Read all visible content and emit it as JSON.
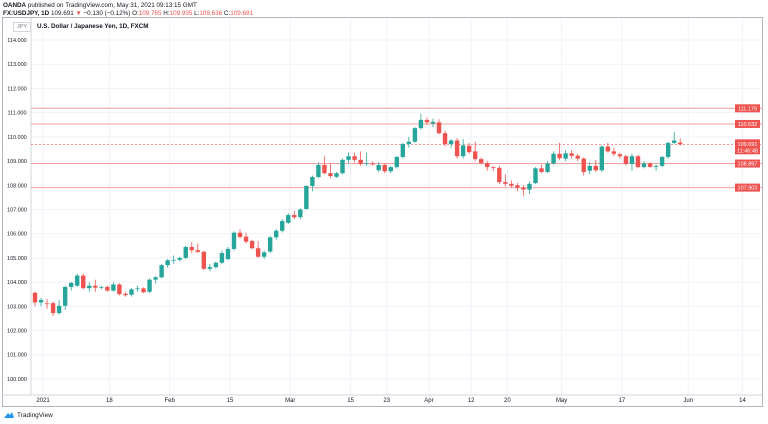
{
  "header": {
    "publisher": "OANDA",
    "published_text": "published on TradingView.com, May 31, 2021 09:13:15 GMT",
    "symbol": "FX:USDJPY, 1D",
    "last": "109.691",
    "change": "−0.130 (−0.12%)",
    "open_label": "O:",
    "open": "109.765",
    "high_label": "H:",
    "high": "109.935",
    "low_label": "L:",
    "low": "109.636",
    "close_label": "C:",
    "close": "109.691"
  },
  "currency_badge": "JPY",
  "footer": {
    "brand": "TradingView"
  },
  "colors": {
    "up": "#26a69a",
    "down": "#ef5350",
    "level": "#f4a09d"
  },
  "chart_data": {
    "type": "candlestick",
    "title": "U.S. Dollar / Japanese Yen, 1D, FXCM",
    "ylim": [
      99.3,
      115.0
    ],
    "y_ticks": [
      "114.000",
      "113.000",
      "112.000",
      "111.000",
      "110.000",
      "109.000",
      "108.000",
      "107.000",
      "106.000",
      "105.000",
      "104.000",
      "103.000",
      "102.000",
      "101.000",
      "100.000"
    ],
    "x_ticks": [
      {
        "label": "2021",
        "index": 1
      },
      {
        "label": "18",
        "index": 12
      },
      {
        "label": "Feb",
        "index": 22
      },
      {
        "label": "15",
        "index": 32
      },
      {
        "label": "Mar",
        "index": 42
      },
      {
        "label": "15",
        "index": 52
      },
      {
        "label": "23",
        "index": 58
      },
      {
        "label": "Apr",
        "index": 65
      },
      {
        "label": "12",
        "index": 72
      },
      {
        "label": "20",
        "index": 78
      },
      {
        "label": "May",
        "index": 87
      },
      {
        "label": "17",
        "index": 97
      },
      {
        "label": "Jun",
        "index": 108
      },
      {
        "label": "14",
        "index": 117
      }
    ],
    "levels": [
      {
        "label": "111.179",
        "value": 111.179
      },
      {
        "label": "110.532",
        "value": 110.532
      },
      {
        "label": "108.897",
        "value": 108.897
      },
      {
        "label": "107.903",
        "value": 107.903
      }
    ],
    "current_price": {
      "label": "109.691",
      "value": 109.691,
      "countdown": "11:46:48"
    },
    "ohlc": [
      [
        103.56,
        103.6,
        103.0,
        103.16
      ],
      [
        103.16,
        103.35,
        103.0,
        103.26
      ],
      [
        103.12,
        103.3,
        102.9,
        103.1
      ],
      [
        103.13,
        103.2,
        102.6,
        102.72
      ],
      [
        102.72,
        103.25,
        102.65,
        103.02
      ],
      [
        103.02,
        103.85,
        102.85,
        103.8
      ],
      [
        103.8,
        104.0,
        103.65,
        103.97
      ],
      [
        103.85,
        104.35,
        103.8,
        104.27
      ],
      [
        104.27,
        104.35,
        103.7,
        103.75
      ],
      [
        103.75,
        104.0,
        103.6,
        103.85
      ],
      [
        103.85,
        104.1,
        103.6,
        103.77
      ],
      [
        103.78,
        103.85,
        103.7,
        103.8
      ],
      [
        103.8,
        103.85,
        103.6,
        103.65
      ],
      [
        103.65,
        104.0,
        103.6,
        103.9
      ],
      [
        103.9,
        103.95,
        103.45,
        103.5
      ],
      [
        103.52,
        103.6,
        103.4,
        103.46
      ],
      [
        103.48,
        103.75,
        103.4,
        103.7
      ],
      [
        103.72,
        103.85,
        103.6,
        103.74
      ],
      [
        103.74,
        103.78,
        103.55,
        103.58
      ],
      [
        103.6,
        104.15,
        103.55,
        104.1
      ],
      [
        104.1,
        104.25,
        103.95,
        104.2
      ],
      [
        104.2,
        104.75,
        104.15,
        104.7
      ],
      [
        104.7,
        104.95,
        104.6,
        104.9
      ],
      [
        104.9,
        105.1,
        104.75,
        104.92
      ],
      [
        104.92,
        105.05,
        104.85,
        105.0
      ],
      [
        105.0,
        105.5,
        104.95,
        105.45
      ],
      [
        105.45,
        105.65,
        105.2,
        105.32
      ],
      [
        105.32,
        105.6,
        105.2,
        105.25
      ],
      [
        105.25,
        105.3,
        104.5,
        104.55
      ],
      [
        104.55,
        104.75,
        104.45,
        104.62
      ],
      [
        104.62,
        104.85,
        104.55,
        104.8
      ],
      [
        104.8,
        105.3,
        104.75,
        105.2
      ],
      [
        104.95,
        105.45,
        104.9,
        105.37
      ],
      [
        105.37,
        106.1,
        105.3,
        106.04
      ],
      [
        106.04,
        106.2,
        105.8,
        105.86
      ],
      [
        105.88,
        106.05,
        105.6,
        105.67
      ],
      [
        105.7,
        105.75,
        105.35,
        105.4
      ],
      [
        105.4,
        105.7,
        105.0,
        105.05
      ],
      [
        105.05,
        105.3,
        104.95,
        105.23
      ],
      [
        105.26,
        105.9,
        105.2,
        105.85
      ],
      [
        105.85,
        106.2,
        105.75,
        106.12
      ],
      [
        106.12,
        106.6,
        106.05,
        106.52
      ],
      [
        106.45,
        106.85,
        106.4,
        106.77
      ],
      [
        106.77,
        106.95,
        106.6,
        106.68
      ],
      [
        106.68,
        107.05,
        106.6,
        107.0
      ],
      [
        107.02,
        108.0,
        107.0,
        107.97
      ],
      [
        107.97,
        108.4,
        107.75,
        108.34
      ],
      [
        108.34,
        108.95,
        108.3,
        108.84
      ],
      [
        108.84,
        109.2,
        108.45,
        108.5
      ],
      [
        108.5,
        108.9,
        108.3,
        108.38
      ],
      [
        108.35,
        108.55,
        108.3,
        108.5
      ],
      [
        108.5,
        109.1,
        108.45,
        109.05
      ],
      [
        109.05,
        109.35,
        108.9,
        109.2
      ],
      [
        109.2,
        109.35,
        108.95,
        109.05
      ],
      [
        109.05,
        109.4,
        108.8,
        108.88
      ],
      [
        108.9,
        109.35,
        108.8,
        108.92
      ],
      [
        108.9,
        108.98,
        108.82,
        108.86
      ],
      [
        108.62,
        108.95,
        108.55,
        108.84
      ],
      [
        108.84,
        108.9,
        108.5,
        108.58
      ],
      [
        108.58,
        108.8,
        108.5,
        108.75
      ],
      [
        108.75,
        109.2,
        108.7,
        109.17
      ],
      [
        109.17,
        109.75,
        109.1,
        109.7
      ],
      [
        109.7,
        110.0,
        109.55,
        109.8
      ],
      [
        109.8,
        110.4,
        109.75,
        110.36
      ],
      [
        110.36,
        110.95,
        110.3,
        110.7
      ],
      [
        110.7,
        110.8,
        110.5,
        110.6
      ],
      [
        110.55,
        110.75,
        110.4,
        110.62
      ],
      [
        110.6,
        110.72,
        110.1,
        110.15
      ],
      [
        110.15,
        110.25,
        109.6,
        109.7
      ],
      [
        109.7,
        109.9,
        109.55,
        109.85
      ],
      [
        109.85,
        109.95,
        109.1,
        109.2
      ],
      [
        109.2,
        109.9,
        109.1,
        109.65
      ],
      [
        109.63,
        109.75,
        109.3,
        109.37
      ],
      [
        109.4,
        109.8,
        109.0,
        109.08
      ],
      [
        109.08,
        109.15,
        108.85,
        108.92
      ],
      [
        108.92,
        109.0,
        108.6,
        108.75
      ],
      [
        108.75,
        108.78,
        108.6,
        108.72
      ],
      [
        108.72,
        108.8,
        108.05,
        108.13
      ],
      [
        108.13,
        108.45,
        107.95,
        108.06
      ],
      [
        108.06,
        108.2,
        107.9,
        107.98
      ],
      [
        108.0,
        108.1,
        107.75,
        107.9
      ],
      [
        107.9,
        108.0,
        107.55,
        107.82
      ],
      [
        107.82,
        108.15,
        107.65,
        108.06
      ],
      [
        108.09,
        108.75,
        108.05,
        108.7
      ],
      [
        108.7,
        108.85,
        108.5,
        108.55
      ],
      [
        108.55,
        109.0,
        108.5,
        108.9
      ],
      [
        108.9,
        109.4,
        108.85,
        109.3
      ],
      [
        109.3,
        109.75,
        109.05,
        109.12
      ],
      [
        109.1,
        109.45,
        109.0,
        109.32
      ],
      [
        109.32,
        109.45,
        109.1,
        109.22
      ],
      [
        109.22,
        109.3,
        109.0,
        109.1
      ],
      [
        109.1,
        109.15,
        108.4,
        108.55
      ],
      [
        108.6,
        108.95,
        108.45,
        108.8
      ],
      [
        108.8,
        109.05,
        108.55,
        108.62
      ],
      [
        108.62,
        109.65,
        108.55,
        109.6
      ],
      [
        109.6,
        109.75,
        109.35,
        109.4
      ],
      [
        109.4,
        109.55,
        109.2,
        109.3
      ],
      [
        109.28,
        109.35,
        109.1,
        109.2
      ],
      [
        109.2,
        109.25,
        108.8,
        108.88
      ],
      [
        108.88,
        109.3,
        108.6,
        109.2
      ],
      [
        109.2,
        109.25,
        108.7,
        108.75
      ],
      [
        108.75,
        109.0,
        108.7,
        108.9
      ],
      [
        108.9,
        108.95,
        108.72,
        108.76
      ],
      [
        108.76,
        108.85,
        108.6,
        108.8
      ],
      [
        108.8,
        109.2,
        108.75,
        109.17
      ],
      [
        109.17,
        109.8,
        109.1,
        109.75
      ],
      [
        109.75,
        110.2,
        109.7,
        109.85
      ],
      [
        109.765,
        109.935,
        109.636,
        109.691
      ]
    ]
  }
}
